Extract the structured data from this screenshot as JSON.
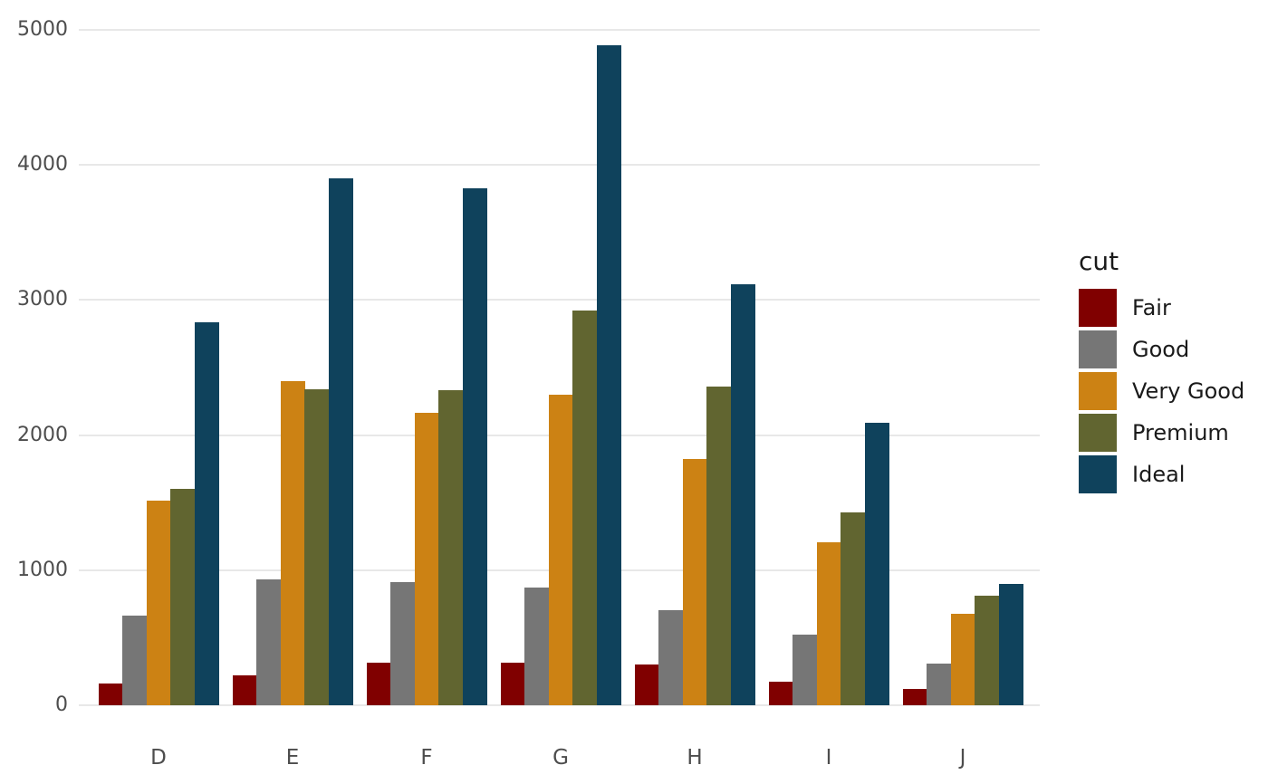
{
  "chart_data": {
    "type": "bar",
    "bar_mode": "grouped",
    "title": "",
    "xlabel": "",
    "ylabel": "",
    "categories": [
      "D",
      "E",
      "F",
      "G",
      "H",
      "I",
      "J"
    ],
    "series": [
      {
        "name": "Fair",
        "color": "#800000",
        "values": [
          163,
          224,
          312,
          314,
          303,
          175,
          119
        ]
      },
      {
        "name": "Good",
        "color": "#767676",
        "values": [
          662,
          933,
          909,
          871,
          702,
          522,
          307
        ]
      },
      {
        "name": "Very Good",
        "color": "#CC8214",
        "values": [
          1513,
          2400,
          2164,
          2299,
          1824,
          1204,
          678
        ]
      },
      {
        "name": "Premium",
        "color": "#616530",
        "values": [
          1603,
          2337,
          2331,
          2924,
          2360,
          1428,
          808
        ]
      },
      {
        "name": "Ideal",
        "color": "#0F425C",
        "values": [
          2834,
          3903,
          3826,
          4884,
          3115,
          2093,
          896
        ]
      }
    ],
    "ylim": [
      0,
      5000
    ],
    "yticks": [
      0,
      1000,
      2000,
      3000,
      4000,
      5000
    ],
    "grid": "horizontal-major-only",
    "legend": {
      "title": "cut",
      "position": "right"
    }
  },
  "colors": {
    "background": "#ffffff",
    "gridline": "#e8e8e8",
    "axis_text": "#4d4d4d",
    "legend_text": "#1a1a1a"
  }
}
